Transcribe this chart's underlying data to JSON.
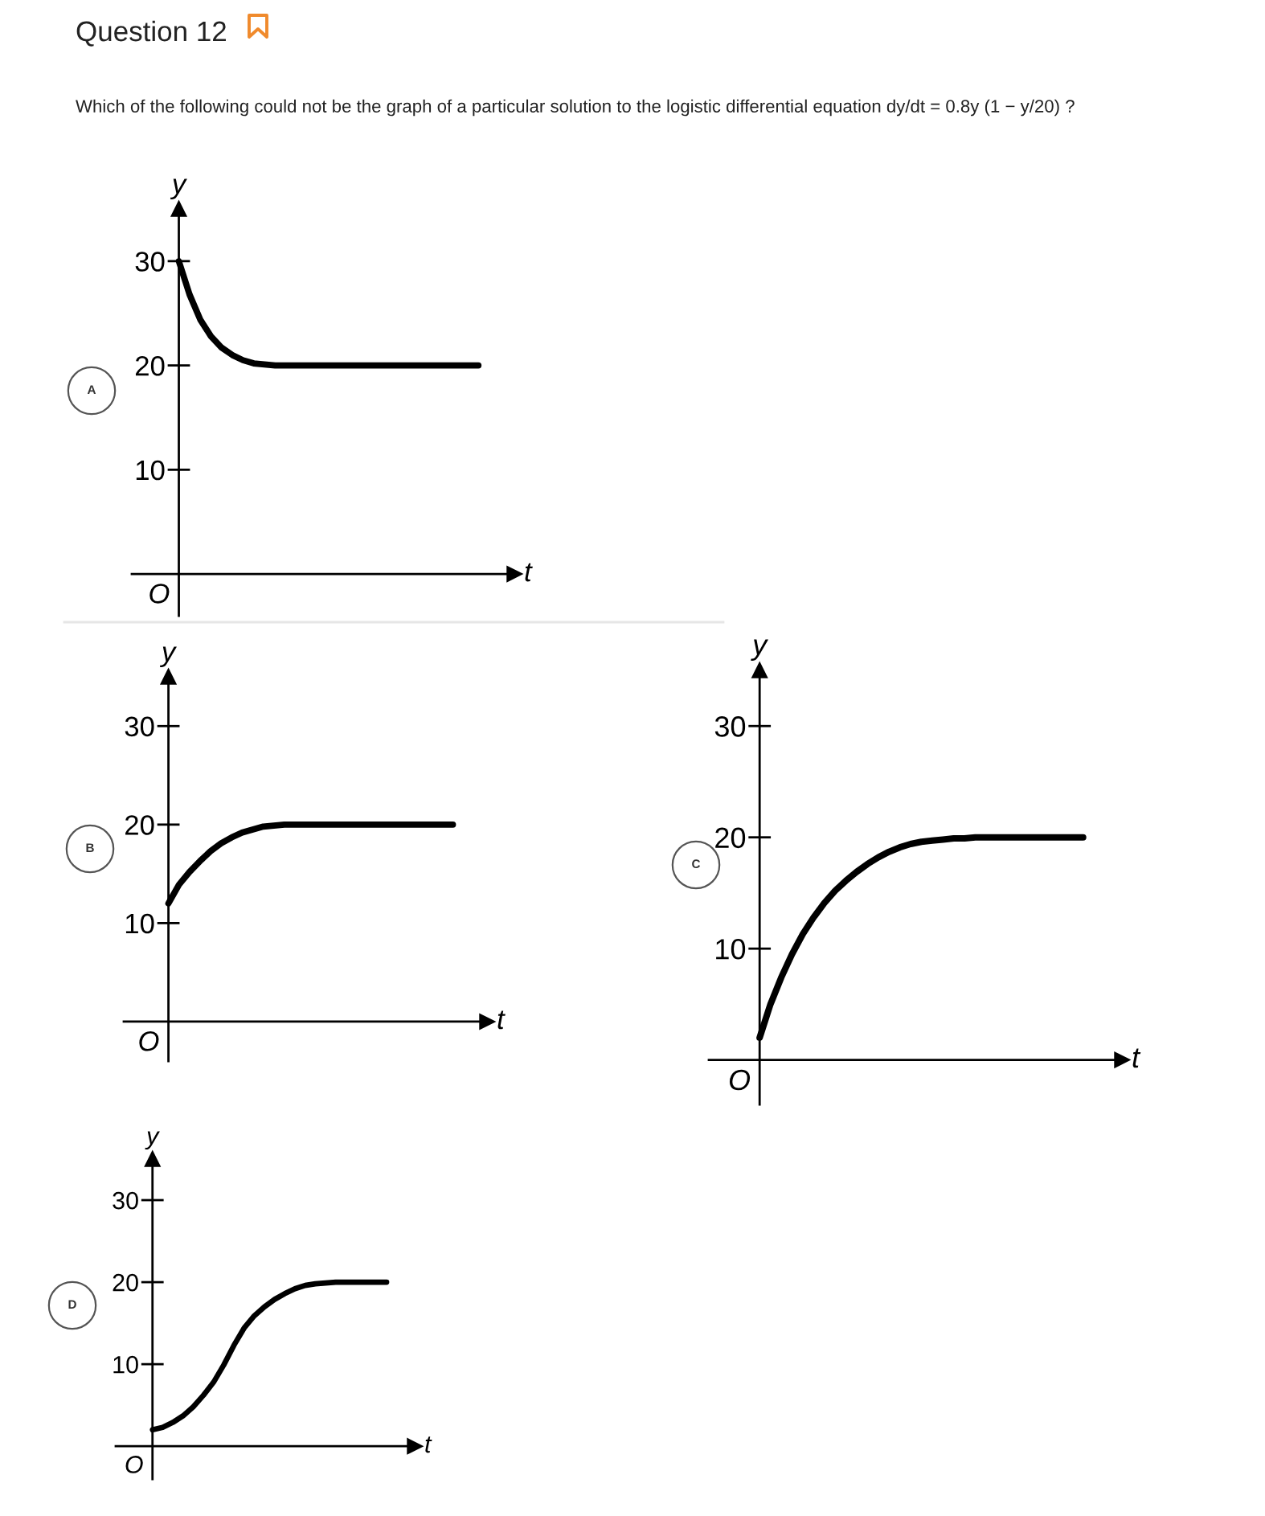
{
  "chart_data": [
    {
      "type": "other",
      "title": "Question 12",
      "subtitle": "Which of the following could not be the graph of a particular solution to the logistic differential equation dy/dt = 0.8y (1 − y/20) ?"
    },
    {
      "type": "line",
      "title": "A",
      "xlabel": "t",
      "ylabel": "y",
      "categories": [
        null,
        null,
        null,
        null,
        null,
        null,
        null,
        null,
        null,
        null,
        null,
        null,
        null,
        null,
        null,
        null,
        null,
        null,
        null,
        null,
        null,
        null,
        null,
        null,
        null,
        null,
        null,
        null,
        null
      ],
      "series": [
        {
          "color": "#000000",
          "values": [
            30.0,
            26.8,
            24.4,
            22.8,
            21.7,
            21.0,
            20.5,
            20.2,
            20.1,
            20.0,
            20.0,
            20.0,
            20.0,
            20.0,
            20.0,
            20.0,
            20.0,
            20.0,
            20.0,
            20.0,
            20.0,
            20.0,
            20.0,
            20.0,
            20.0,
            20.0,
            20.0,
            20.0,
            20.0
          ]
        }
      ],
      "ylim": [
        -4,
        35
      ],
      "yticks": [
        10,
        20,
        30
      ],
      "tick_labels": "y",
      "line_style": "solid",
      "annotations": [
        "O"
      ]
    },
    {
      "type": "line",
      "title": "B",
      "xlabel": "t",
      "ylabel": "y",
      "categories": [
        null,
        null,
        null,
        null,
        null,
        null,
        null,
        null,
        null,
        null,
        null,
        null,
        null,
        null,
        null,
        null,
        null,
        null,
        null,
        null,
        null,
        null,
        null,
        null,
        null,
        null,
        null,
        null
      ],
      "series": [
        {
          "color": "#000000",
          "values": [
            12.0,
            13.9,
            15.2,
            16.3,
            17.3,
            18.1,
            18.7,
            19.2,
            19.5,
            19.8,
            19.9,
            20.0,
            20.0,
            20.0,
            20.0,
            20.0,
            20.0,
            20.0,
            20.0,
            20.0,
            20.0,
            20.0,
            20.0,
            20.0,
            20.0,
            20.0,
            20.0,
            20.0
          ]
        }
      ],
      "ylim": [
        -4,
        35
      ],
      "yticks": [
        10,
        20,
        30
      ],
      "tick_labels": "y",
      "line_style": "solid",
      "annotations": [
        "O"
      ]
    },
    {
      "type": "line",
      "title": "C",
      "xlabel": "t",
      "ylabel": "y",
      "categories": [
        null,
        null,
        null,
        null,
        null,
        null,
        null,
        null,
        null,
        null,
        null,
        null,
        null,
        null,
        null,
        null,
        null,
        null,
        null,
        null,
        null,
        null,
        null,
        null,
        null,
        null,
        null,
        null,
        null,
        null,
        null
      ],
      "series": [
        {
          "color": "#000000",
          "values": [
            2.0,
            5.0,
            7.4,
            9.5,
            11.3,
            12.8,
            14.1,
            15.2,
            16.1,
            16.9,
            17.6,
            18.2,
            18.7,
            19.1,
            19.4,
            19.6,
            19.7,
            19.8,
            19.9,
            19.9,
            20.0,
            20.0,
            20.0,
            20.0,
            20.0,
            20.0,
            20.0,
            20.0,
            20.0,
            20.0,
            20.0
          ]
        }
      ],
      "ylim": [
        -4,
        35
      ],
      "yticks": [
        10,
        20,
        30
      ],
      "tick_labels": "y",
      "line_style": "solid",
      "annotations": [
        "O"
      ]
    },
    {
      "type": "line",
      "title": "D",
      "xlabel": "t",
      "ylabel": "y",
      "categories": [
        null,
        null,
        null,
        null,
        null,
        null,
        null,
        null,
        null,
        null,
        null,
        null,
        null,
        null,
        null,
        null,
        null,
        null,
        null,
        null,
        null,
        null,
        null,
        null
      ],
      "series": [
        {
          "color": "#000000",
          "values": [
            2.0,
            2.3,
            2.9,
            3.7,
            4.8,
            6.2,
            7.8,
            9.9,
            12.3,
            14.4,
            15.9,
            17.0,
            17.9,
            18.6,
            19.2,
            19.6,
            19.8,
            19.9,
            20.0,
            20.0,
            20.0,
            20.0,
            20.0,
            20.0
          ]
        }
      ],
      "ylim": [
        -4,
        35
      ],
      "yticks": [
        10,
        20,
        30
      ],
      "tick_labels": "y",
      "line_style": "solid",
      "annotations": [
        "O"
      ]
    }
  ]
}
